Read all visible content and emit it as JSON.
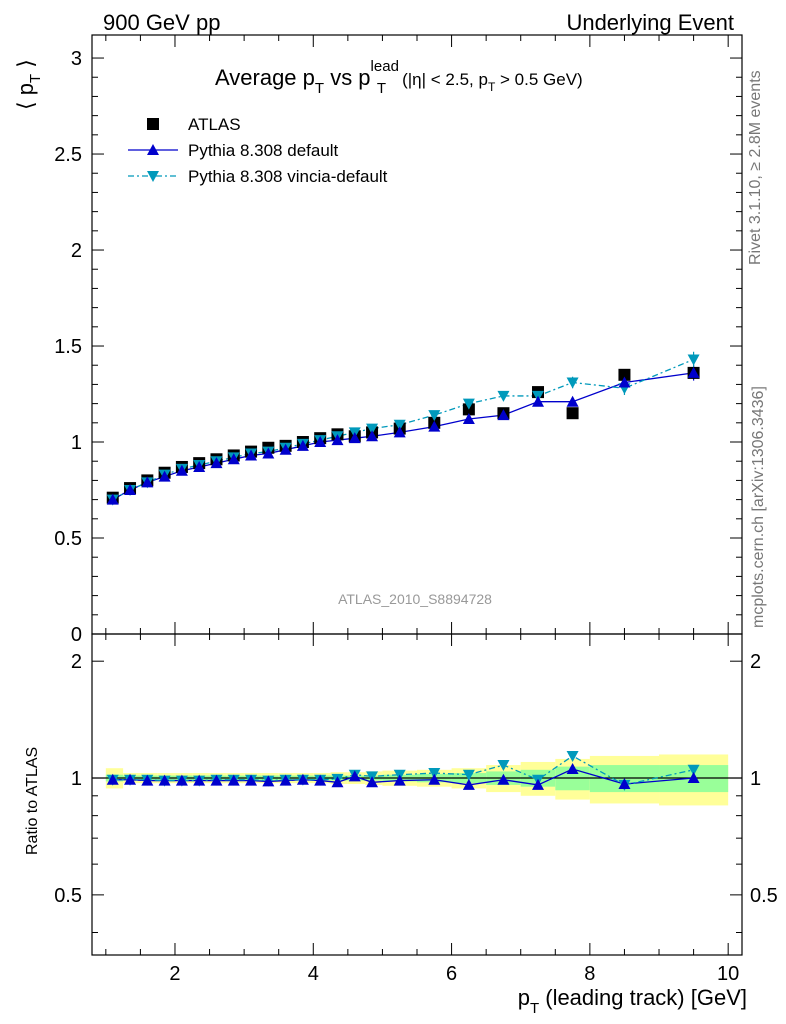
{
  "header": {
    "left": "900 GeV pp",
    "right": "Underlying Event"
  },
  "title": {
    "main_a": "Average p",
    "main_sub1": "T",
    "main_b": " vs p",
    "main_sup": "lead",
    "main_sub2": "T",
    "cut_a": "(|η| < 2.5, p",
    "cut_sub": "T",
    "cut_b": " > 0.5 GeV)"
  },
  "side_labels": {
    "rivet": "Rivet 3.1.10, ≥ 2.8M events",
    "mcplots": "mcplots.cern.ch [arXiv:1306.3436]"
  },
  "watermark": "ATLAS_2010_S8894728",
  "ylabel_main": {
    "a": "⟨ p",
    "sub": "T",
    "b": " ⟩"
  },
  "ylabel_ratio": "Ratio to ATLAS",
  "xlabel": {
    "a": "p",
    "sub": "T",
    "b": " (leading track) [GeV]"
  },
  "legend": [
    {
      "label": "ATLAS",
      "marker": "square",
      "color": "#000000"
    },
    {
      "label": "Pythia 8.308 default",
      "marker": "triangle-up",
      "color": "#0000cc"
    },
    {
      "label": "Pythia 8.308 vincia-default",
      "marker": "triangle-down",
      "color": "#0099bb"
    }
  ],
  "chart_data": [
    {
      "type": "scatter",
      "panel": "main",
      "xlim": [
        0.8,
        10.2
      ],
      "ylim": [
        0,
        3.12
      ],
      "yticks": [
        "0.5",
        "1",
        "1.5",
        "2",
        "2.5",
        "3"
      ],
      "ytick_values": [
        0.5,
        1,
        1.5,
        2,
        2.5,
        3
      ],
      "ytick_zero_label": "0",
      "x": [
        1.1,
        1.35,
        1.6,
        1.85,
        2.1,
        2.35,
        2.6,
        2.85,
        3.1,
        3.35,
        3.6,
        3.85,
        4.1,
        4.35,
        4.6,
        4.85,
        5.25,
        5.75,
        6.25,
        6.75,
        7.25,
        7.75,
        8.5,
        9.5
      ],
      "series": [
        {
          "name": "ATLAS",
          "values": [
            0.71,
            0.76,
            0.8,
            0.84,
            0.87,
            0.89,
            0.91,
            0.93,
            0.95,
            0.97,
            0.98,
            1.0,
            1.02,
            1.04,
            1.03,
            1.05,
            1.07,
            1.1,
            1.17,
            1.15,
            1.26,
            1.15,
            1.35,
            1.36
          ]
        },
        {
          "name": "Pythia 8.308 default",
          "values": [
            0.7,
            0.75,
            0.79,
            0.82,
            0.85,
            0.87,
            0.89,
            0.91,
            0.93,
            0.94,
            0.96,
            0.98,
            1.0,
            1.01,
            1.02,
            1.03,
            1.05,
            1.08,
            1.12,
            1.14,
            1.21,
            1.21,
            1.31,
            1.36
          ],
          "errors": [
            0.005,
            0.005,
            0.005,
            0.005,
            0.005,
            0.005,
            0.005,
            0.005,
            0.005,
            0.005,
            0.006,
            0.006,
            0.006,
            0.007,
            0.007,
            0.008,
            0.008,
            0.01,
            0.012,
            0.015,
            0.02,
            0.025,
            0.03,
            0.04
          ]
        },
        {
          "name": "Pythia 8.308 vincia-default",
          "values": [
            0.7,
            0.75,
            0.79,
            0.83,
            0.86,
            0.88,
            0.9,
            0.92,
            0.94,
            0.95,
            0.97,
            0.99,
            1.01,
            1.03,
            1.05,
            1.07,
            1.09,
            1.14,
            1.2,
            1.24,
            1.24,
            1.31,
            1.28,
            1.43
          ],
          "errors": [
            0.005,
            0.005,
            0.005,
            0.005,
            0.005,
            0.005,
            0.005,
            0.005,
            0.005,
            0.005,
            0.006,
            0.006,
            0.006,
            0.007,
            0.007,
            0.008,
            0.008,
            0.01,
            0.012,
            0.015,
            0.02,
            0.03,
            0.035,
            0.04
          ]
        }
      ]
    },
    {
      "type": "scatter",
      "panel": "ratio",
      "xlim": [
        0.8,
        10.2
      ],
      "ylim": [
        0.35,
        2.35
      ],
      "yticks": [
        "0.5",
        "1",
        "2"
      ],
      "ytick_values": [
        0.5,
        1,
        2
      ],
      "xticks": [
        "2",
        "4",
        "6",
        "8",
        "10"
      ],
      "xtick_values": [
        2,
        4,
        6,
        8,
        10
      ],
      "x": [
        1.1,
        1.35,
        1.6,
        1.85,
        2.1,
        2.35,
        2.6,
        2.85,
        3.1,
        3.35,
        3.6,
        3.85,
        4.1,
        4.35,
        4.6,
        4.85,
        5.25,
        5.75,
        6.25,
        6.75,
        7.25,
        7.75,
        8.5,
        9.5
      ],
      "bin_edges": [
        1.0,
        1.25,
        1.5,
        1.75,
        2.0,
        2.25,
        2.5,
        2.75,
        3.0,
        3.25,
        3.5,
        3.75,
        4.0,
        4.25,
        4.5,
        4.75,
        5.0,
        5.5,
        6.0,
        6.5,
        7.0,
        7.5,
        8.0,
        9.0,
        10.0
      ],
      "band_stat": [
        0.02,
        0.015,
        0.015,
        0.015,
        0.015,
        0.015,
        0.015,
        0.015,
        0.015,
        0.015,
        0.015,
        0.015,
        0.015,
        0.015,
        0.015,
        0.015,
        0.02,
        0.025,
        0.03,
        0.04,
        0.05,
        0.07,
        0.08,
        0.08
      ],
      "band_total": [
        0.06,
        0.03,
        0.03,
        0.03,
        0.03,
        0.03,
        0.03,
        0.03,
        0.03,
        0.03,
        0.03,
        0.03,
        0.03,
        0.035,
        0.035,
        0.04,
        0.045,
        0.05,
        0.06,
        0.08,
        0.1,
        0.12,
        0.14,
        0.15
      ],
      "series": [
        {
          "name": "Pythia 8.308 default",
          "values": [
            0.99,
            0.99,
            0.985,
            0.985,
            0.985,
            0.985,
            0.985,
            0.985,
            0.985,
            0.98,
            0.985,
            0.99,
            0.985,
            0.975,
            1.01,
            0.975,
            0.985,
            0.99,
            0.96,
            0.99,
            0.96,
            1.055,
            0.965,
            1.0
          ]
        },
        {
          "name": "Pythia 8.308 vincia-default",
          "values": [
            0.99,
            0.99,
            0.99,
            0.985,
            0.985,
            0.985,
            0.99,
            0.99,
            0.99,
            0.985,
            0.99,
            0.99,
            0.99,
            0.995,
            1.02,
            1.01,
            1.02,
            1.03,
            1.02,
            1.08,
            0.99,
            1.14,
            0.96,
            1.05
          ]
        }
      ]
    }
  ]
}
